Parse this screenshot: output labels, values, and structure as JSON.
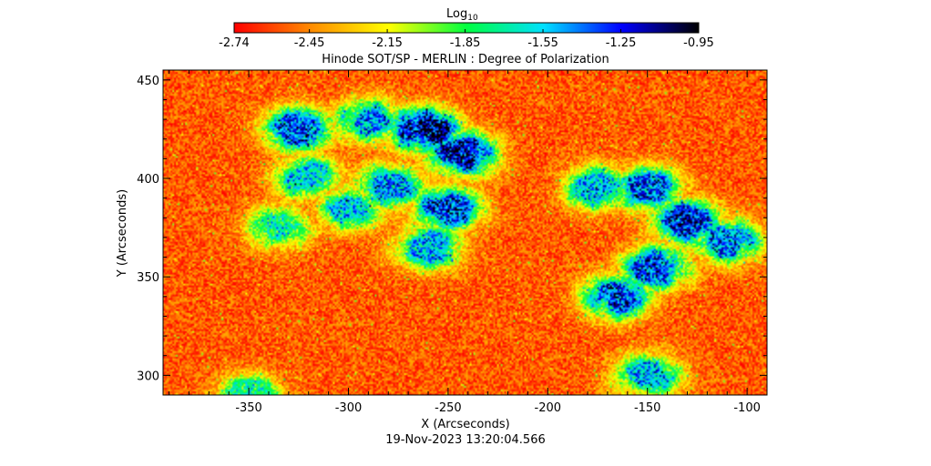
{
  "colorbar": {
    "label_base": "Log",
    "label_sub": "10",
    "ticks": [
      "-2.74",
      "-2.45",
      "-2.15",
      "-1.85",
      "-1.55",
      "-1.25",
      "-0.95"
    ],
    "range": [
      -2.74,
      -0.95
    ],
    "colors": [
      "#ff0000",
      "#ff8c00",
      "#ffff00",
      "#00ff40",
      "#00e0ff",
      "#0000ff",
      "#000000"
    ]
  },
  "chart_data": {
    "type": "heatmap",
    "title": "Hinode SOT/SP - MERLIN : Degree of Polarization",
    "xlabel": "X (Arcseconds)",
    "ylabel": "Y (Arcseconds)",
    "xlim": [
      -393,
      -90
    ],
    "ylim": [
      290,
      455
    ],
    "xticks": [
      -350,
      -300,
      -250,
      -200,
      -150,
      -100
    ],
    "yticks": [
      300,
      350,
      400,
      450
    ],
    "xtick_labels": [
      "-350",
      "-300",
      "-250",
      "-200",
      "-150",
      "-100"
    ],
    "ytick_labels": [
      "300",
      "350",
      "400",
      "450"
    ],
    "value_label": "Log10 degree of polarization",
    "value_range": [
      -2.74,
      -0.95
    ],
    "background_level": -2.55,
    "polarized_regions": [
      {
        "x": -262,
        "y": 425,
        "level": -1.05
      },
      {
        "x": -242,
        "y": 412,
        "level": -1.15
      },
      {
        "x": -250,
        "y": 385,
        "level": -1.3
      },
      {
        "x": -325,
        "y": 425,
        "level": -1.35
      },
      {
        "x": -290,
        "y": 430,
        "level": -1.45
      },
      {
        "x": -320,
        "y": 400,
        "level": -1.6
      },
      {
        "x": -280,
        "y": 395,
        "level": -1.45
      },
      {
        "x": -300,
        "y": 385,
        "level": -1.55
      },
      {
        "x": -260,
        "y": 365,
        "level": -1.5
      },
      {
        "x": -175,
        "y": 395,
        "level": -1.5
      },
      {
        "x": -150,
        "y": 395,
        "level": -1.35
      },
      {
        "x": -130,
        "y": 378,
        "level": -1.25
      },
      {
        "x": -110,
        "y": 368,
        "level": -1.4
      },
      {
        "x": -145,
        "y": 355,
        "level": -1.3
      },
      {
        "x": -165,
        "y": 340,
        "level": -1.3
      },
      {
        "x": -150,
        "y": 300,
        "level": -1.5
      },
      {
        "x": -335,
        "y": 375,
        "level": -1.7
      },
      {
        "x": -350,
        "y": 290,
        "level": -1.75
      }
    ],
    "footer": "19-Nov-2023 13:20:04.566"
  }
}
